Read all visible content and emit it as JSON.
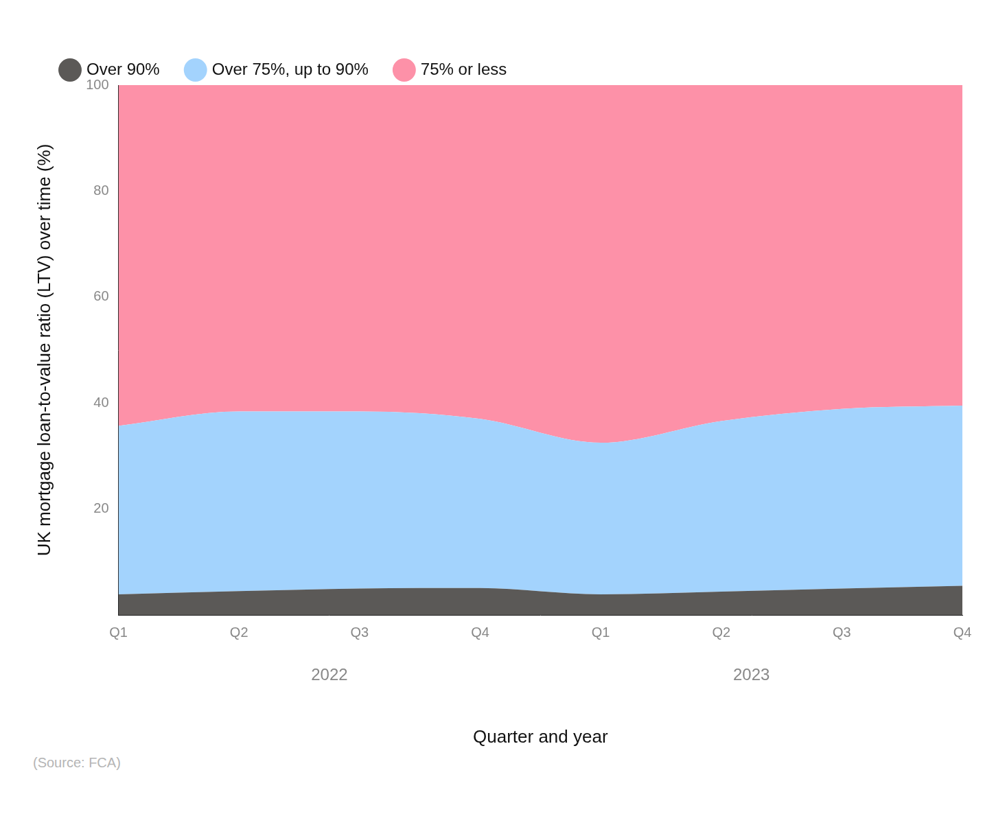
{
  "chart_data": {
    "type": "area",
    "stacked": true,
    "grid": true,
    "legend": "top",
    "x_label": "Quarter and year",
    "y_label": "UK mortgage loan-to-value ratio (LTV) over time (%)",
    "source": "(Source: FCA)",
    "categories": [
      "Q1",
      "Q2",
      "Q3",
      "Q4",
      "Q1",
      "Q2",
      "Q3",
      "Q4"
    ],
    "category_groups": [
      "2022",
      "2023"
    ],
    "series": [
      {
        "name": "Over 90%",
        "color": "#5b5957",
        "values": [
          3.9,
          4.5,
          5.0,
          5.1,
          3.9,
          4.4,
          5.0,
          5.5
        ]
      },
      {
        "name": "Over 75%, up to 90%",
        "color": "#a3d3fd",
        "values": [
          31.8,
          33.9,
          33.4,
          31.9,
          28.6,
          32.2,
          33.9,
          34.0
        ]
      },
      {
        "name": "75% or less",
        "color": "#fd91a8",
        "values": [
          64.3,
          61.6,
          61.6,
          63.0,
          67.5,
          63.4,
          61.1,
          60.5
        ]
      }
    ],
    "ylim": [
      0,
      100
    ],
    "yticks": [
      20,
      40,
      60,
      80,
      100
    ]
  }
}
